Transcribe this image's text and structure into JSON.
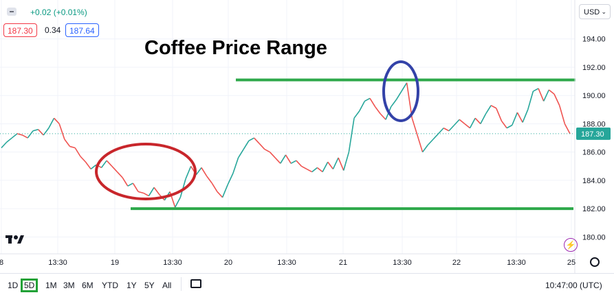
{
  "header": {
    "change": "+0.02 (+0.01%)",
    "bid": "187.30",
    "spread": "0.34",
    "ask": "187.64"
  },
  "currency_menu": "USD",
  "chart_data": {
    "type": "line",
    "title": "Coffee Price Range",
    "ylim": [
      179,
      195.2
    ],
    "yticks": [
      "194.00",
      "192.00",
      "190.00",
      "188.00",
      "186.00",
      "184.00",
      "182.00",
      "180.00"
    ],
    "xticks": [
      "8",
      "13:30",
      "19",
      "13:30",
      "20",
      "13:30",
      "21",
      "13:30",
      "22",
      "13:30",
      "25"
    ],
    "last_price_label": "187.30",
    "last_price": 187.3,
    "series": [
      {
        "values": [
          186.3,
          186.7,
          187.0,
          187.3,
          187.2,
          187.0,
          187.5,
          187.6,
          187.2,
          187.7,
          188.4,
          188.0,
          186.9,
          186.4,
          186.3,
          185.7,
          185.3,
          184.8,
          185.1,
          184.9,
          185.4,
          185.0,
          184.6,
          184.2,
          183.6,
          183.8,
          183.2,
          183.1,
          182.9,
          183.5,
          183.0,
          182.6,
          183.2,
          182.1,
          182.8,
          184.1,
          185.0,
          184.4,
          184.9,
          184.3,
          183.8,
          183.2,
          182.8,
          183.7,
          184.5,
          185.6,
          186.2,
          186.8,
          187.0,
          186.6,
          186.2,
          186.0,
          185.6,
          185.2,
          185.8,
          185.2,
          185.4,
          185.0,
          184.8,
          184.6,
          184.9,
          184.6,
          185.3,
          184.8,
          185.6,
          184.7,
          186.0,
          188.4,
          188.9,
          189.6,
          189.8,
          189.2,
          188.7,
          188.3,
          189.2,
          189.7,
          190.3,
          190.9,
          188.4,
          187.2,
          186.0,
          186.5,
          186.9,
          187.3,
          187.7,
          187.5,
          187.9,
          188.3,
          188.0,
          187.7,
          188.4,
          188.0,
          188.7,
          189.3,
          189.1,
          188.2,
          187.7,
          187.9,
          188.8,
          188.1,
          189.0,
          190.3,
          190.5,
          189.6,
          190.4,
          190.1,
          189.3,
          188.0,
          187.3
        ],
        "color": "#26a69a"
      }
    ],
    "annotations": {
      "resistance": 191.1,
      "support": 182.0,
      "line_color": "#2da84a",
      "low_circle_color": "#c8262b",
      "high_circle_color": "#3342a8"
    }
  },
  "bottom": {
    "ranges": [
      "1D",
      "5D",
      "1M",
      "3M",
      "6M",
      "YTD",
      "1Y",
      "5Y",
      "All"
    ],
    "selected": "5D",
    "clock": "10:47:00 (UTC)"
  },
  "colors": {
    "up": "#26a69a",
    "down": "#ef5350",
    "grid": "#f0f3fa"
  }
}
